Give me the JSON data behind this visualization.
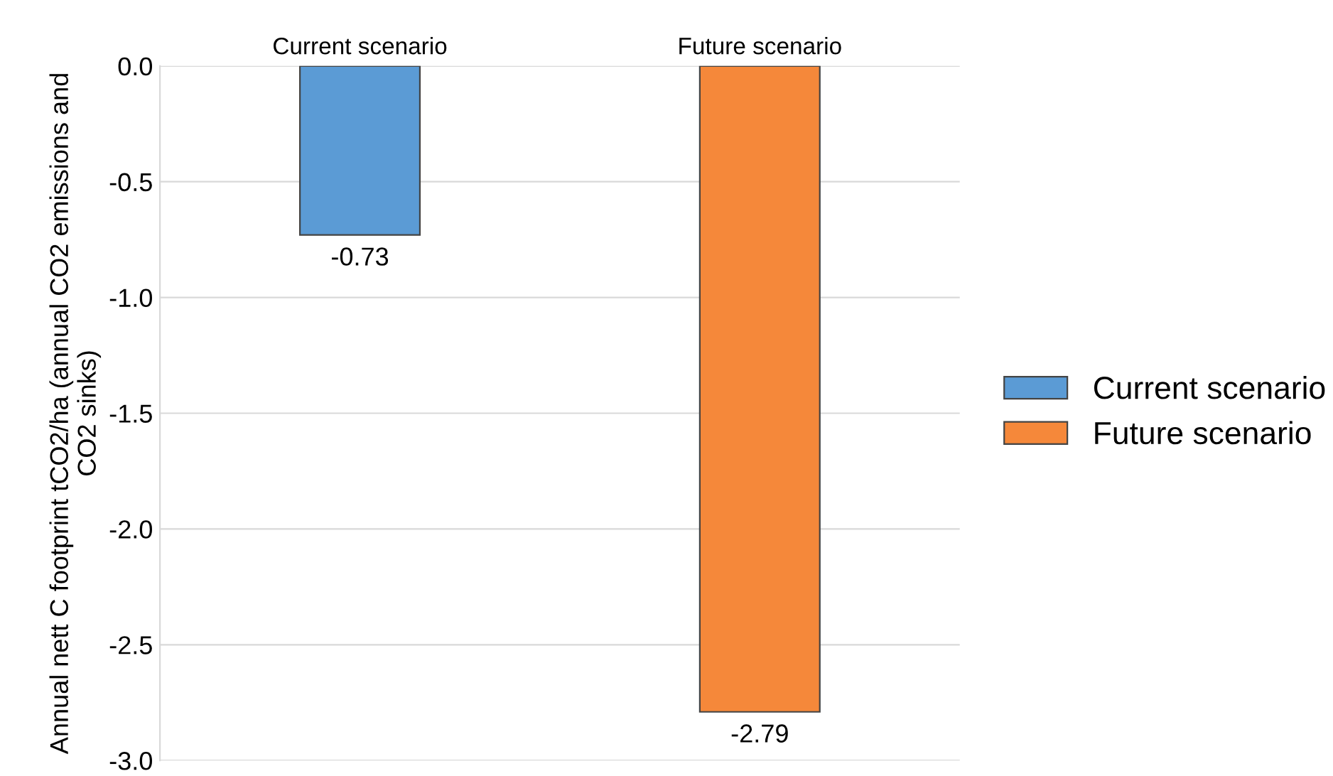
{
  "chart_data": {
    "type": "bar",
    "ylabel": "Annual nett C footprint tCO2/ha (annual CO2 emissions and CO2 sinks)",
    "categories": [
      "Current scenario",
      "Future scenario"
    ],
    "series": [
      {
        "name": "Current scenario",
        "color": "#5b9bd5",
        "values": [
          -0.73,
          null
        ]
      },
      {
        "name": "Future scenario",
        "color": "#f5883a",
        "values": [
          null,
          -2.79
        ]
      }
    ],
    "ylim": [
      -3.0,
      0.0
    ],
    "yticks": [
      {
        "value": -3.0,
        "label": "-3.0"
      },
      {
        "value": -2.5,
        "label": "-2.5"
      },
      {
        "value": -2.0,
        "label": "-2.0"
      },
      {
        "value": -1.5,
        "label": "-1.5"
      },
      {
        "value": -1.0,
        "label": "-1.0"
      },
      {
        "value": -0.5,
        "label": "-0.5"
      },
      {
        "value": 0.0,
        "label": "0.0"
      }
    ],
    "grid": "y",
    "legend": "right",
    "data_labels": true
  }
}
